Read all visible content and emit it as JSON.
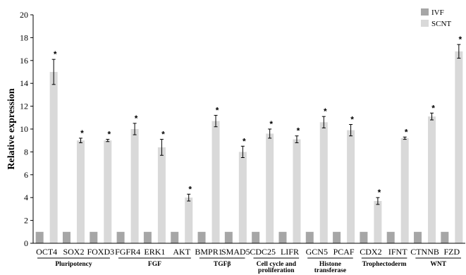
{
  "chart_data": {
    "type": "bar",
    "title": "",
    "xlabel": "",
    "ylabel": "Relative expression",
    "ylim": [
      0,
      20
    ],
    "yticks": [
      0,
      2,
      4,
      6,
      8,
      10,
      12,
      14,
      16,
      18,
      20
    ],
    "grid": false,
    "legend_position": "top-right",
    "colors": {
      "IVF": "#a6a6a6",
      "SCNT": "#d9d9d9",
      "axis": "#000000"
    },
    "categories": [
      "OCT4",
      "SOX2",
      "FOXD3",
      "FGFR4",
      "ERK1",
      "AKT",
      "BMPR1",
      "SMAD5",
      "CDC25",
      "LIFR",
      "GCN5",
      "PCAF",
      "CDX2",
      "IFNT",
      "CTNNB",
      "FZD"
    ],
    "series": [
      {
        "name": "IVF",
        "values": [
          1,
          1,
          1,
          1,
          1,
          1,
          1,
          1,
          1,
          1,
          1,
          1,
          1,
          1,
          1,
          1
        ]
      },
      {
        "name": "SCNT",
        "values": [
          15.0,
          9.0,
          9.0,
          10.0,
          8.4,
          4.0,
          10.7,
          8.0,
          9.6,
          9.1,
          10.6,
          9.9,
          3.7,
          9.2,
          11.1,
          16.8
        ],
        "errors": [
          1.1,
          0.2,
          0.1,
          0.5,
          0.7,
          0.3,
          0.5,
          0.5,
          0.4,
          0.3,
          0.5,
          0.5,
          0.3,
          0.1,
          0.3,
          0.6
        ]
      }
    ],
    "significance": [
      "*",
      "*",
      "*",
      "*",
      "*",
      "*",
      "*",
      "*",
      "*",
      "*",
      "*",
      "*",
      "*",
      "*",
      "*",
      "*"
    ],
    "groups": [
      {
        "label": [
          "Pluripotency"
        ],
        "start": 0,
        "end": 2
      },
      {
        "label": [
          "FGF"
        ],
        "start": 3,
        "end": 5
      },
      {
        "label": [
          "TGFβ"
        ],
        "start": 6,
        "end": 7
      },
      {
        "label": [
          "Cell cycle and",
          "proliferation"
        ],
        "start": 8,
        "end": 9
      },
      {
        "label": [
          "Histone",
          "transferase"
        ],
        "start": 10,
        "end": 11
      },
      {
        "label": [
          "Trophectoderm"
        ],
        "start": 12,
        "end": 13
      },
      {
        "label": [
          "WNT"
        ],
        "start": 14,
        "end": 15
      }
    ]
  }
}
